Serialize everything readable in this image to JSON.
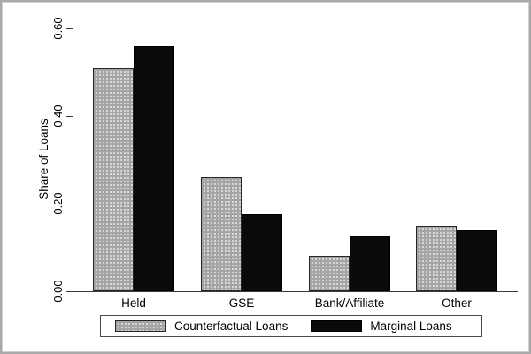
{
  "chart_data": {
    "type": "bar",
    "title": "",
    "categories": [
      "Held",
      "GSE",
      "Bank/Affiliate",
      "Other"
    ],
    "series": [
      {
        "name": "Counterfactual Loans",
        "color": "#a4a4a4",
        "pattern": "dotted",
        "values": [
          0.51,
          0.26,
          0.08,
          0.15
        ]
      },
      {
        "name": "Marginal Loans",
        "color": "#0a0a0a",
        "pattern": "solid",
        "values": [
          0.56,
          0.175,
          0.125,
          0.14
        ]
      }
    ],
    "xlabel": "",
    "ylabel": "Share of Loans",
    "yticks": [
      "0.00",
      "0.20",
      "0.40",
      "0.60"
    ],
    "ytick_values": [
      0.0,
      0.2,
      0.4,
      0.6
    ],
    "ylim": [
      0,
      0.6
    ],
    "grid": false,
    "legend_position": "bottom-center",
    "axis_color": "#3a3a3a"
  }
}
